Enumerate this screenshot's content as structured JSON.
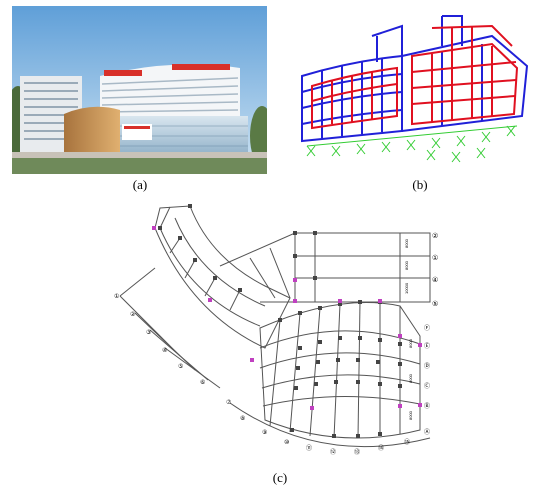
{
  "figure": {
    "panels": [
      {
        "id": "a",
        "caption": "(a)",
        "content": "hospital building rendering"
      },
      {
        "id": "b",
        "caption": "(b)",
        "content": "3D structural frame model"
      },
      {
        "id": "c",
        "caption": "(c)",
        "content": "floor plan axis grid"
      }
    ],
    "colors": {
      "frame_blue": "#2020d8",
      "frame_red": "#e01020",
      "isolator_green": "#33cc33",
      "column_purple": "#c040c0",
      "grid_gray": "#555555"
    },
    "plan": {
      "right_axis_labels": [
        "②",
        "①",
        "④",
        "⑤"
      ],
      "right_lower_axis_labels": [
        "Ⓕ",
        "Ⓔ",
        "Ⓓ",
        "Ⓒ",
        "Ⓑ",
        "Ⓐ"
      ],
      "left_axis_labels": [
        "①",
        "②",
        "③",
        "④",
        "⑤",
        "⑥",
        "⑦"
      ],
      "bottom_axis_labels": [
        "⑧",
        "⑨",
        "⑩",
        "⑪",
        "⑫",
        "⑬",
        "⑭",
        "⑮"
      ],
      "dimension_labels": [
        "8000",
        "8000",
        "10000",
        "8000",
        "8000",
        "8000"
      ]
    }
  }
}
